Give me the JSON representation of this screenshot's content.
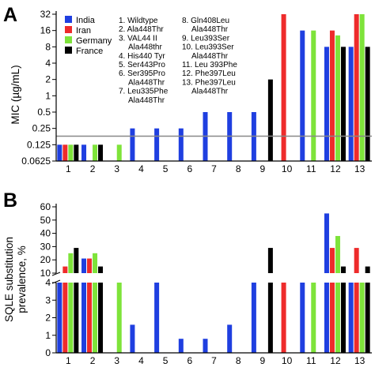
{
  "colors": {
    "India": "#1f3fe0",
    "Iran": "#ee2b2b",
    "Germany": "#7ee33a",
    "France": "#000000",
    "reference_line": "#888888"
  },
  "legend": [
    "India",
    "Iran",
    "Germany",
    "France"
  ],
  "mutation_notes": {
    "left": [
      "1. Wildtype",
      "2. Ala448Thr",
      "3. VAL44 II",
      "Ala448thr",
      "4. His440 Tyr",
      "5. Ser443Pro",
      "6. Ser395Pro",
      "Ala448Thr",
      "7. Leu335Phe",
      "Ala448Thr"
    ],
    "right": [
      "8. Gln408Leu",
      "Ala448Thr",
      "9. Leu393Ser",
      "10. Leu393Ser",
      "Ala448Thr",
      "11. Leu 393Phe",
      "12. Phe397Leu",
      "13. Phe397Leu",
      "Ala448Thr"
    ]
  },
  "chart_data": [
    {
      "panel": "A",
      "type": "bar",
      "ylabel": "MIC (µg/mL)",
      "yscale": "log2",
      "ylim": [
        0.0625,
        32
      ],
      "yticks": [
        "0.0625",
        "0.125",
        "0.25",
        "0.5",
        "1",
        "2",
        "4",
        "8",
        "16",
        "32"
      ],
      "reference_line": 0.18,
      "categories": [
        "1",
        "2",
        "3",
        "4",
        "5",
        "6",
        "7",
        "8",
        "9",
        "10",
        "11",
        "12",
        "13"
      ],
      "series": [
        {
          "name": "India",
          "values": [
            0.125,
            0.125,
            null,
            0.25,
            0.25,
            0.25,
            0.5,
            0.5,
            0.5,
            null,
            16,
            8,
            8
          ]
        },
        {
          "name": "Iran",
          "values": [
            0.125,
            null,
            null,
            null,
            null,
            null,
            null,
            null,
            null,
            32,
            null,
            16,
            32
          ]
        },
        {
          "name": "Germany",
          "values": [
            0.125,
            0.125,
            0.125,
            null,
            null,
            null,
            null,
            null,
            null,
            null,
            16,
            13,
            32
          ]
        },
        {
          "name": "France",
          "values": [
            0.125,
            0.125,
            null,
            null,
            null,
            null,
            null,
            null,
            2,
            null,
            null,
            8,
            8
          ]
        }
      ]
    },
    {
      "panel": "B",
      "type": "bar",
      "ylabel": "SQLE substitution prevalence, %",
      "ylim": [
        0,
        60
      ],
      "axis_break": true,
      "yticks_upper": [
        "10",
        "20",
        "30",
        "40",
        "50",
        "60"
      ],
      "yticks_lower": [
        "0",
        "1",
        "2",
        "3",
        "4"
      ],
      "categories": [
        "1",
        "2",
        "3",
        "4",
        "5",
        "6",
        "7",
        "8",
        "9",
        "10",
        "11",
        "12",
        "13"
      ],
      "series": [
        {
          "name": "India",
          "values": [
            8,
            21,
            null,
            1.6,
            4,
            0.8,
            0.8,
            1.6,
            4,
            null,
            4,
            55,
            10
          ]
        },
        {
          "name": "Iran",
          "values": [
            15,
            21,
            null,
            null,
            null,
            null,
            null,
            null,
            null,
            7.5,
            null,
            29,
            29
          ]
        },
        {
          "name": "Germany",
          "values": [
            25,
            25,
            4.5,
            null,
            null,
            null,
            null,
            null,
            null,
            null,
            4.5,
            38,
            7
          ]
        },
        {
          "name": "France",
          "values": [
            29,
            15,
            null,
            null,
            null,
            null,
            null,
            null,
            29,
            null,
            null,
            15,
            15
          ]
        }
      ]
    }
  ]
}
